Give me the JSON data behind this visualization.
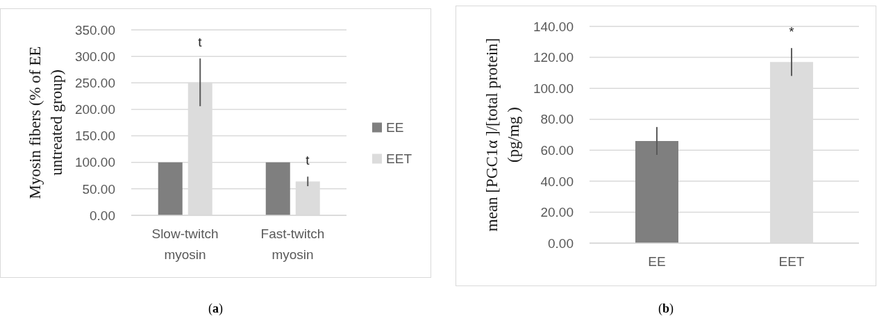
{
  "chart_data": [
    {
      "type": "bar",
      "ylabel": "Myosin fibers (% of EE untreated group)",
      "categories": [
        "Slow-twitch myosin",
        "Fast-twitch myosin"
      ],
      "series": [
        {
          "name": "EE",
          "color": "#7f7f7f",
          "values": [
            100,
            100
          ]
        },
        {
          "name": "EET",
          "color": "#dcdcdc",
          "values": [
            251,
            64
          ],
          "errors": [
            45,
            9
          ]
        }
      ],
      "ylim": [
        0,
        350
      ],
      "yticks": [
        {
          "value": 0,
          "label": "0.00"
        },
        {
          "value": 50,
          "label": "50.00"
        },
        {
          "value": 100,
          "label": "100.00"
        },
        {
          "value": 150,
          "label": "150.00"
        },
        {
          "value": 200,
          "label": "200.00"
        },
        {
          "value": 250,
          "label": "250.00"
        },
        {
          "value": 300,
          "label": "300.00"
        },
        {
          "value": 350,
          "label": "350.00"
        }
      ],
      "grid": "y",
      "legend": "right",
      "annotations": [
        {
          "text": "t",
          "x": "Slow-twitch myosin",
          "y": 251
        },
        {
          "text": "t",
          "x": "Fast-twitch myosin",
          "y": 64
        },
        "(a)"
      ]
    },
    {
      "type": "bar",
      "ylabel": "mean [PGC1α ]/[total protein] (pg/mg )",
      "categories": [
        "EE",
        "EET"
      ],
      "values": [
        66,
        117
      ],
      "colors": [
        "#7f7f7f",
        "#dcdcdc"
      ],
      "errors": [
        9,
        9
      ],
      "ylim": [
        0,
        140
      ],
      "yticks": [
        {
          "value": 0,
          "label": "0.00"
        },
        {
          "value": 20,
          "label": "20.00"
        },
        {
          "value": 40,
          "label": "40.00"
        },
        {
          "value": 60,
          "label": "60.00"
        },
        {
          "value": 80,
          "label": "80.00"
        },
        {
          "value": 100,
          "label": "100.00"
        },
        {
          "value": 120,
          "label": "120.00"
        },
        {
          "value": 140,
          "label": "140.00"
        }
      ],
      "grid": "y",
      "annotations": [
        {
          "text": "*",
          "x": "EET",
          "y": 117
        },
        "(b)"
      ]
    }
  ]
}
